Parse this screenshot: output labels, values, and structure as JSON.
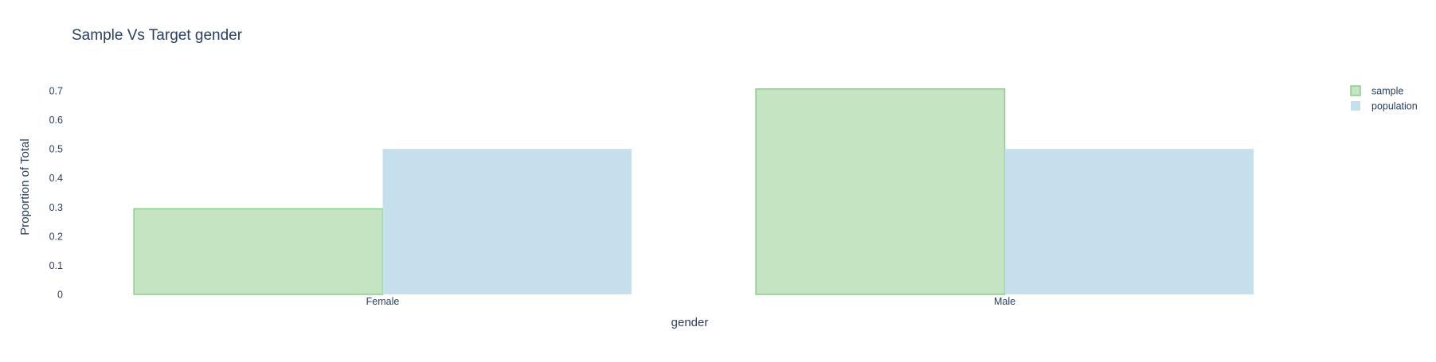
{
  "chart_data": {
    "type": "bar",
    "title": "Sample Vs Target gender",
    "xlabel": "gender",
    "ylabel": "Proportion of Total",
    "categories": [
      "Female",
      "Male"
    ],
    "series": [
      {
        "name": "sample",
        "values": [
          0.294,
          0.706
        ]
      },
      {
        "name": "population",
        "values": [
          0.5,
          0.5
        ]
      }
    ],
    "ylim": [
      0,
      0.7
    ],
    "yticks": [
      0,
      0.1,
      0.2,
      0.3,
      0.4,
      0.5,
      0.6,
      0.7
    ],
    "ytick_labels": [
      "0",
      "0.1",
      "0.2",
      "0.3",
      "0.4",
      "0.5",
      "0.6",
      "0.7"
    ],
    "grid": false,
    "legend_position": "top-right",
    "colors": {
      "sample_fill": "#c5e4c1",
      "sample_stroke": "#8fcc8b",
      "population_fill": "#c6dfec",
      "population_stroke": "#c6dfec",
      "text": "#2a3f5f"
    }
  }
}
